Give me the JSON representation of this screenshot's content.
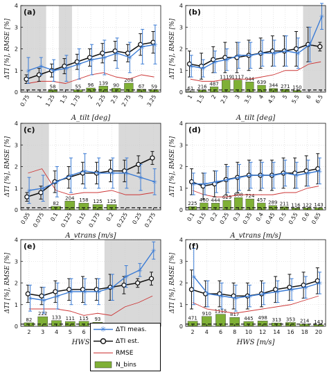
{
  "colors": {
    "meas": "#3a7bd5",
    "est": "#111111",
    "rmse": "#cc3333",
    "bins": "#7fb036",
    "excluded": "#d9d9d9"
  },
  "legend": {
    "meas": "ΔTI meas.",
    "est": "ΔTI est.",
    "rmse": "RMSE",
    "bins": "N_bins"
  },
  "chart_data": [
    {
      "type": "line",
      "panel": "(a)",
      "ylabel": "ΔTI [%], RMSE [%]",
      "xlabel": "A_tilt [deg]",
      "ylim": [
        0,
        4
      ],
      "yticks": [
        0,
        1,
        2,
        3,
        4
      ],
      "x": [
        0.75,
        1,
        1.25,
        1.5,
        1.75,
        2,
        2.25,
        2.5,
        2.75,
        3,
        3.25
      ],
      "xticks": [
        "0.75",
        "1",
        "1.25",
        "1.5",
        "1.75",
        "2",
        "2.25",
        "2.5",
        "2.75",
        "3",
        "3.25"
      ],
      "xlim": [
        0.62,
        3.38
      ],
      "excluded_ranges": [
        [
          0.62,
          0.88
        ],
        [
          0.88,
          1.12
        ],
        [
          1.37,
          1.63
        ]
      ],
      "meas": [
        1.0,
        1.2,
        1.0,
        1.1,
        1.3,
        1.5,
        1.6,
        1.8,
        1.6,
        2.1,
        2.2
      ],
      "meas_err": [
        0.6,
        0.4,
        0.5,
        0.6,
        0.7,
        0.7,
        0.8,
        0.7,
        0.7,
        0.8,
        0.9
      ],
      "est": [
        0.6,
        0.8,
        1.0,
        1.2,
        1.4,
        1.6,
        1.8,
        1.9,
        1.8,
        2.2,
        2.3
      ],
      "est_err": [
        0.2,
        0.3,
        0.3,
        0.35,
        0.35,
        0.4,
        0.45,
        0.45,
        0.4,
        0.5,
        0.5
      ],
      "rmse": [
        0.4,
        0.5,
        0.5,
        0.4,
        0.6,
        0.8,
        0.9,
        0.7,
        0.6,
        0.8,
        0.7
      ],
      "nbins": [
        null,
        null,
        58,
        null,
        55,
        96,
        139,
        90,
        208,
        67,
        59
      ],
      "nbins_labels": [
        "",
        "",
        "58",
        "",
        "55",
        "96",
        "139",
        "90",
        "208",
        "67",
        "59"
      ],
      "nbin_scale": 0.002
    },
    {
      "type": "line",
      "panel": "(b)",
      "ylabel": "ΔTI [%], RMSE [%]",
      "xlabel": "A_tilt [deg]",
      "ylim": [
        0,
        4
      ],
      "yticks": [
        0,
        1,
        2,
        3,
        4
      ],
      "x": [
        1,
        1.5,
        2,
        2.5,
        3,
        3.5,
        4,
        4.5,
        5,
        5.5,
        6,
        6.5
      ],
      "xticks": [
        "1",
        "1.5",
        "2",
        "2.5",
        "3",
        "3.5",
        "4",
        "4.5",
        "5",
        "5.5",
        "6",
        "6.5"
      ],
      "xlim": [
        0.8,
        6.7
      ],
      "excluded_ranges": [
        [
          5.75,
          6.7
        ]
      ],
      "meas": [
        1.2,
        1.1,
        1.4,
        1.5,
        1.7,
        1.7,
        1.8,
        1.8,
        1.9,
        1.8,
        2.2,
        3.5
      ],
      "meas_err": [
        0.5,
        0.4,
        0.5,
        0.5,
        0.6,
        0.6,
        0.6,
        0.6,
        0.7,
        0.7,
        0.8,
        0.6
      ],
      "est": [
        1.3,
        1.2,
        1.5,
        1.6,
        1.6,
        1.7,
        1.8,
        1.9,
        1.9,
        2.0,
        2.2,
        2.1
      ],
      "est_err": [
        0.6,
        0.6,
        0.6,
        0.7,
        0.7,
        0.7,
        0.7,
        0.7,
        0.7,
        0.8,
        0.8,
        0.2
      ],
      "rmse": [
        0.6,
        0.5,
        0.5,
        0.6,
        0.6,
        0.6,
        0.7,
        0.8,
        1.0,
        1.0,
        1.3,
        1.4
      ],
      "nbins": [
        61,
        216,
        487,
        1119,
        1117,
        944,
        639,
        344,
        271,
        150,
        null,
        null
      ],
      "nbins_labels": [
        "61",
        "216",
        "487",
        "1119",
        "1117",
        "944",
        "639",
        "344",
        "271",
        "150",
        "",
        ""
      ],
      "nbin_scale": 0.0005
    },
    {
      "type": "line",
      "panel": "(c)",
      "ylabel": "ΔTI [%], RMSE [%]",
      "xlabel": "A_vtrans [m/s]",
      "ylim": [
        0,
        4
      ],
      "yticks": [
        0,
        1,
        2,
        3,
        4
      ],
      "x": [
        0.05,
        0.075,
        0.1,
        0.125,
        0.15,
        0.175,
        0.2,
        0.225,
        0.25,
        0.275
      ],
      "xticks": [
        "0.05",
        "0.075",
        "0.1",
        "0.125",
        "0.15",
        "0.175",
        "0.2",
        "0.225",
        "0.25",
        "0.275"
      ],
      "xlim": [
        0.037,
        0.288
      ],
      "excluded_ranges": [
        [
          0.037,
          0.0875
        ],
        [
          0.2125,
          0.288
        ]
      ],
      "meas": [
        0.9,
        1.0,
        1.3,
        1.6,
        1.8,
        1.7,
        1.7,
        1.7,
        1.5,
        1.3
      ],
      "meas_err": [
        0.6,
        0.6,
        0.7,
        0.8,
        0.8,
        0.7,
        0.7,
        0.7,
        0.6,
        0.6
      ],
      "est": [
        0.6,
        0.8,
        1.3,
        1.5,
        1.7,
        1.7,
        1.8,
        1.8,
        2.1,
        2.4
      ],
      "est_err": [
        0.2,
        0.3,
        0.5,
        0.5,
        0.5,
        0.5,
        0.5,
        0.5,
        0.4,
        0.3
      ],
      "rmse": [
        1.7,
        1.9,
        0.9,
        0.7,
        0.8,
        0.8,
        0.9,
        0.7,
        0.7,
        0.8
      ],
      "nbins": [
        null,
        null,
        82,
        204,
        158,
        125,
        125,
        null,
        null,
        null
      ],
      "nbins_labels": [
        "",
        "",
        "82",
        "204",
        "158",
        "125",
        "125",
        "",
        "",
        ""
      ],
      "nbin_scale": 0.002
    },
    {
      "type": "line",
      "panel": "(d)",
      "ylabel": "ΔTI [%], RMSE [%]",
      "xlabel": "A_vtrans [m/s]",
      "ylim": [
        0,
        4
      ],
      "yticks": [
        0,
        1,
        2,
        3,
        4
      ],
      "x": [
        0.1,
        0.15,
        0.2,
        0.25,
        0.3,
        0.35,
        0.4,
        0.45,
        0.5,
        0.55,
        0.6,
        0.65
      ],
      "xticks": [
        "0.1",
        "0.15",
        "0.2",
        "0.25",
        "0.3",
        "0.35",
        "0.4",
        "0.45",
        "0.5",
        "0.55",
        "0.6",
        "0.65"
      ],
      "xlim": [
        0.07,
        0.68
      ],
      "excluded_ranges": [],
      "meas": [
        1.2,
        1.2,
        1.3,
        1.4,
        1.5,
        1.6,
        1.6,
        1.6,
        1.7,
        1.6,
        1.7,
        1.8
      ],
      "meas_err": [
        0.5,
        0.5,
        0.5,
        0.6,
        0.6,
        0.6,
        0.6,
        0.6,
        0.6,
        0.6,
        0.6,
        0.6
      ],
      "est": [
        1.3,
        1.1,
        1.2,
        1.4,
        1.5,
        1.6,
        1.6,
        1.6,
        1.7,
        1.7,
        1.8,
        1.9
      ],
      "est_err": [
        0.6,
        0.6,
        0.6,
        0.7,
        0.7,
        0.7,
        0.7,
        0.7,
        0.7,
        0.7,
        0.7,
        0.7
      ],
      "rmse": [
        0.9,
        0.7,
        0.6,
        0.6,
        0.7,
        0.7,
        0.7,
        0.7,
        0.8,
        0.8,
        1.0,
        1.1
      ],
      "nbins": [
        225,
        460,
        444,
        629,
        808,
        724,
        457,
        289,
        211,
        116,
        122,
        143
      ],
      "nbins_labels": [
        "225",
        "460",
        "444",
        "629",
        "808",
        "724",
        "457",
        "289",
        "211",
        "116",
        "122",
        "143"
      ],
      "nbin_scale": 0.0007
    },
    {
      "type": "line",
      "panel": "(e)",
      "ylabel": "ΔTI [%], RMSE [%]",
      "xlabel": "HWS [m/s]",
      "ylim": [
        0,
        4
      ],
      "yticks": [
        0,
        1,
        2,
        3,
        4
      ],
      "x": [
        2,
        3,
        4,
        5,
        6,
        7,
        8,
        9,
        10,
        11
      ],
      "xticks": [
        "2",
        "3",
        "4",
        "5",
        "6",
        "7",
        "8",
        "9",
        "10",
        "11"
      ],
      "xlim": [
        1.4,
        11.6
      ],
      "excluded_ranges": [
        [
          7.5,
          11.6
        ]
      ],
      "meas": [
        1.3,
        1.2,
        1.4,
        1.6,
        1.6,
        1.6,
        1.8,
        2.3,
        2.6,
        3.5
      ],
      "meas_err": [
        0.6,
        0.6,
        0.6,
        0.6,
        0.6,
        0.6,
        0.6,
        0.5,
        0.3,
        0.4
      ],
      "est": [
        1.5,
        1.4,
        1.6,
        1.7,
        1.7,
        1.7,
        1.8,
        1.9,
        2.0,
        2.2
      ],
      "est_err": [
        0.4,
        0.4,
        0.5,
        0.5,
        0.6,
        0.5,
        0.6,
        0.4,
        0.2,
        0.3
      ],
      "rmse": [
        0.8,
        0.8,
        0.8,
        0.7,
        0.5,
        0.6,
        0.5,
        0.9,
        1.1,
        1.4
      ],
      "nbins": [
        82,
        222,
        133,
        111,
        115,
        93,
        null,
        null,
        null,
        null
      ],
      "nbins_labels": [
        "82",
        "222",
        "133",
        "111",
        "115",
        "93",
        "",
        "",
        "",
        ""
      ],
      "nbin_scale": 0.002
    },
    {
      "type": "line",
      "panel": "(f)",
      "ylabel": "ΔTI [%], RMSE [%]",
      "xlabel": "HWS [m/s]",
      "ylim": [
        0,
        4
      ],
      "yticks": [
        0,
        1,
        2,
        3,
        4
      ],
      "x": [
        2,
        4,
        6,
        8,
        10,
        12,
        14,
        16,
        18,
        20
      ],
      "xticks": [
        "2",
        "4",
        "6",
        "8",
        "10",
        "12",
        "14",
        "16",
        "18",
        "20"
      ],
      "xlim": [
        1,
        21
      ],
      "excluded_ranges": [],
      "meas": [
        2.3,
        1.5,
        1.4,
        1.3,
        1.4,
        1.5,
        1.6,
        1.7,
        1.8,
        2.0
      ],
      "meas_err": [
        1.3,
        0.6,
        0.6,
        0.6,
        0.5,
        0.5,
        0.5,
        0.5,
        0.5,
        0.5
      ],
      "est": [
        1.7,
        1.5,
        1.5,
        1.4,
        1.4,
        1.5,
        1.7,
        1.8,
        1.9,
        2.1
      ],
      "est_err": [
        0.9,
        0.6,
        0.6,
        0.6,
        0.6,
        0.6,
        0.6,
        0.6,
        0.6,
        0.6
      ],
      "rmse": [
        1.1,
        0.8,
        0.7,
        0.6,
        0.7,
        0.8,
        0.9,
        1.0,
        1.2,
        1.4
      ],
      "nbins": [
        471,
        910,
        1115,
        817,
        445,
        498,
        313,
        353,
        214,
        143
      ],
      "nbins_labels": [
        "471",
        "910",
        "1115",
        "817",
        "445",
        "498",
        "313",
        "353",
        "214",
        "143"
      ],
      "nbin_scale": 0.0005
    }
  ]
}
